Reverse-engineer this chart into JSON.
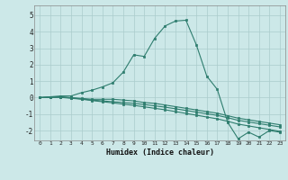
{
  "title": "",
  "xlabel": "Humidex (Indice chaleur)",
  "ylabel": "",
  "bg_color": "#cce8e8",
  "line_color": "#2e7d6e",
  "grid_color": "#aacccc",
  "xlim": [
    -0.5,
    23.5
  ],
  "ylim": [
    -2.6,
    5.6
  ],
  "xticks": [
    0,
    1,
    2,
    3,
    4,
    5,
    6,
    7,
    8,
    9,
    10,
    11,
    12,
    13,
    14,
    15,
    16,
    17,
    18,
    19,
    20,
    21,
    22,
    23
  ],
  "yticks": [
    -2,
    -1,
    0,
    1,
    2,
    3,
    4,
    5
  ],
  "series": [
    [
      0.0,
      0.05,
      0.1,
      0.1,
      0.3,
      0.45,
      0.65,
      0.9,
      1.55,
      2.6,
      2.5,
      3.6,
      4.35,
      4.65,
      4.7,
      3.2,
      1.3,
      0.5,
      -1.5,
      -2.5,
      -2.1,
      -2.4,
      -2.0,
      -2.1
    ],
    [
      0.0,
      0.04,
      0.05,
      0.0,
      -0.05,
      -0.1,
      -0.1,
      -0.1,
      -0.15,
      -0.2,
      -0.3,
      -0.35,
      -0.45,
      -0.55,
      -0.65,
      -0.75,
      -0.85,
      -0.95,
      -1.1,
      -1.25,
      -1.35,
      -1.45,
      -1.55,
      -1.65
    ],
    [
      0.0,
      0.02,
      0.03,
      -0.02,
      -0.08,
      -0.15,
      -0.2,
      -0.25,
      -0.3,
      -0.35,
      -0.42,
      -0.5,
      -0.58,
      -0.68,
      -0.78,
      -0.88,
      -0.98,
      -1.08,
      -1.22,
      -1.38,
      -1.48,
      -1.58,
      -1.68,
      -1.78
    ],
    [
      0.0,
      0.01,
      0.01,
      -0.04,
      -0.1,
      -0.18,
      -0.25,
      -0.32,
      -0.4,
      -0.47,
      -0.56,
      -0.65,
      -0.74,
      -0.85,
      -0.96,
      -1.07,
      -1.18,
      -1.29,
      -1.44,
      -1.61,
      -1.72,
      -1.83,
      -1.94,
      -2.05
    ]
  ]
}
